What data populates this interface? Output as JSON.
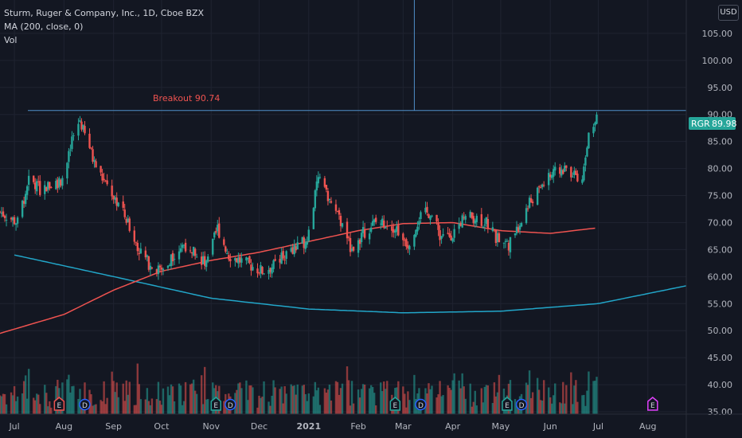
{
  "legend": {
    "title": "Sturm, Ruger & Company, Inc., 1D, Cboe BZX",
    "indicator": "MA (200, close, 0)",
    "volume": "Vol"
  },
  "currency_button": "USD",
  "annotation": {
    "text": "Breakout 90.74",
    "color": "#ef5350"
  },
  "price_tag": {
    "symbol": "RGR",
    "value": "89.98",
    "color": "#26a69a"
  },
  "colors": {
    "up": "#26a69a",
    "down": "#ef5350",
    "ma": "#ef5350",
    "arc": "#22a6c9",
    "line": "#4f8fc9",
    "bg": "#131722",
    "grid": "#1f2330"
  },
  "events": [
    {
      "label": "E",
      "kind": "earnings",
      "color": "#ef5350",
      "date": "2020-07-29"
    },
    {
      "label": "D",
      "kind": "dividend",
      "color": "#2962ff",
      "date": "2020-08-14"
    },
    {
      "label": "E",
      "kind": "earnings",
      "color": "#26a69a",
      "date": "2020-11-04"
    },
    {
      "label": "D",
      "kind": "dividend",
      "color": "#2962ff",
      "date": "2020-11-13"
    },
    {
      "label": "E",
      "kind": "earnings",
      "color": "#26a69a",
      "date": "2021-02-24"
    },
    {
      "label": "D",
      "kind": "dividend",
      "color": "#2962ff",
      "date": "2021-03-12"
    },
    {
      "label": "E",
      "kind": "earnings",
      "color": "#26a69a",
      "date": "2021-05-05"
    },
    {
      "label": "D",
      "kind": "dividend",
      "color": "#2962ff",
      "date": "2021-05-14"
    },
    {
      "label": "E",
      "kind": "earnings",
      "color": "#e040fb",
      "date": "2021-08-04"
    }
  ],
  "chart_data": {
    "type": "candlestick",
    "y_axis": {
      "min": 35,
      "max": 110,
      "ticks": [
        "35.00",
        "40.00",
        "45.00",
        "50.00",
        "55.00",
        "60.00",
        "65.00",
        "70.00",
        "75.00",
        "80.00",
        "85.00",
        "90.00",
        "95.00",
        "100.00",
        "105.00"
      ]
    },
    "x_ticks": [
      "Jul",
      "Aug",
      "Sep",
      "Oct",
      "Nov",
      "Dec",
      "2021",
      "Feb",
      "Mar",
      "Apr",
      "May",
      "Jun",
      "Jul",
      "Aug"
    ],
    "x_range": [
      "2020-06-22",
      "2021-08-25"
    ],
    "horizontal_line": 90.74,
    "vertical_line": "2021-03-08",
    "series": [
      {
        "name": "RGR",
        "close_path": [
          [
            "2020-06-22",
            72
          ],
          [
            "2020-07-03",
            70
          ],
          [
            "2020-07-10",
            78
          ],
          [
            "2020-07-17",
            76
          ],
          [
            "2020-07-24",
            77
          ],
          [
            "2020-07-31",
            78
          ],
          [
            "2020-08-03",
            81
          ],
          [
            "2020-08-07",
            86
          ],
          [
            "2020-08-11",
            89
          ],
          [
            "2020-08-13",
            87
          ],
          [
            "2020-08-20",
            81
          ],
          [
            "2020-08-27",
            77
          ],
          [
            "2020-09-03",
            74
          ],
          [
            "2020-09-10",
            70
          ],
          [
            "2020-09-17",
            65
          ],
          [
            "2020-09-24",
            62
          ],
          [
            "2020-10-01",
            61
          ],
          [
            "2020-10-08",
            64
          ],
          [
            "2020-10-15",
            66
          ],
          [
            "2020-10-22",
            65
          ],
          [
            "2020-10-29",
            62
          ],
          [
            "2020-11-05",
            69
          ],
          [
            "2020-11-12",
            64
          ],
          [
            "2020-11-19",
            63
          ],
          [
            "2020-11-26",
            62
          ],
          [
            "2020-12-03",
            61
          ],
          [
            "2020-12-10",
            62
          ],
          [
            "2020-12-17",
            64
          ],
          [
            "2020-12-24",
            65
          ],
          [
            "2020-12-31",
            67
          ],
          [
            "2021-01-07",
            78
          ],
          [
            "2021-01-14",
            74
          ],
          [
            "2021-01-21",
            70
          ],
          [
            "2021-01-28",
            65
          ],
          [
            "2021-02-04",
            68
          ],
          [
            "2021-02-11",
            70
          ],
          [
            "2021-02-18",
            70
          ],
          [
            "2021-02-25",
            69
          ],
          [
            "2021-03-04",
            66
          ],
          [
            "2021-03-11",
            71
          ],
          [
            "2021-03-18",
            72
          ],
          [
            "2021-03-25",
            67
          ],
          [
            "2021-04-01",
            68
          ],
          [
            "2021-04-08",
            71
          ],
          [
            "2021-04-15",
            71
          ],
          [
            "2021-04-22",
            70
          ],
          [
            "2021-04-29",
            67
          ],
          [
            "2021-05-06",
            66
          ],
          [
            "2021-05-13",
            70
          ],
          [
            "2021-05-20",
            74
          ],
          [
            "2021-05-27",
            77
          ],
          [
            "2021-06-03",
            79
          ],
          [
            "2021-06-10",
            80
          ],
          [
            "2021-06-17",
            79
          ],
          [
            "2021-06-21",
            78
          ],
          [
            "2021-06-24",
            85
          ],
          [
            "2021-06-28",
            87
          ],
          [
            "2021-06-30",
            89.98
          ]
        ]
      },
      {
        "name": "MA (200, close, 0)",
        "points": [
          [
            "2020-06-22",
            49.5
          ],
          [
            "2020-08-01",
            53
          ],
          [
            "2020-09-01",
            57.5
          ],
          [
            "2020-10-01",
            61
          ],
          [
            "2020-11-01",
            63
          ],
          [
            "2020-12-01",
            64.5
          ],
          [
            "2021-01-01",
            66.5
          ],
          [
            "2021-02-01",
            68.5
          ],
          [
            "2021-03-01",
            69.8
          ],
          [
            "2021-04-01",
            70
          ],
          [
            "2021-05-01",
            68.5
          ],
          [
            "2021-06-01",
            68
          ],
          [
            "2021-06-30",
            69
          ]
        ]
      },
      {
        "name": "Cup arc",
        "points": [
          [
            "2020-07-01",
            64
          ],
          [
            "2020-09-01",
            60
          ],
          [
            "2020-11-01",
            56
          ],
          [
            "2021-01-01",
            54
          ],
          [
            "2021-03-01",
            53.3
          ],
          [
            "2021-05-01",
            53.6
          ],
          [
            "2021-07-01",
            55
          ],
          [
            "2021-08-25",
            58.3
          ]
        ]
      }
    ]
  }
}
